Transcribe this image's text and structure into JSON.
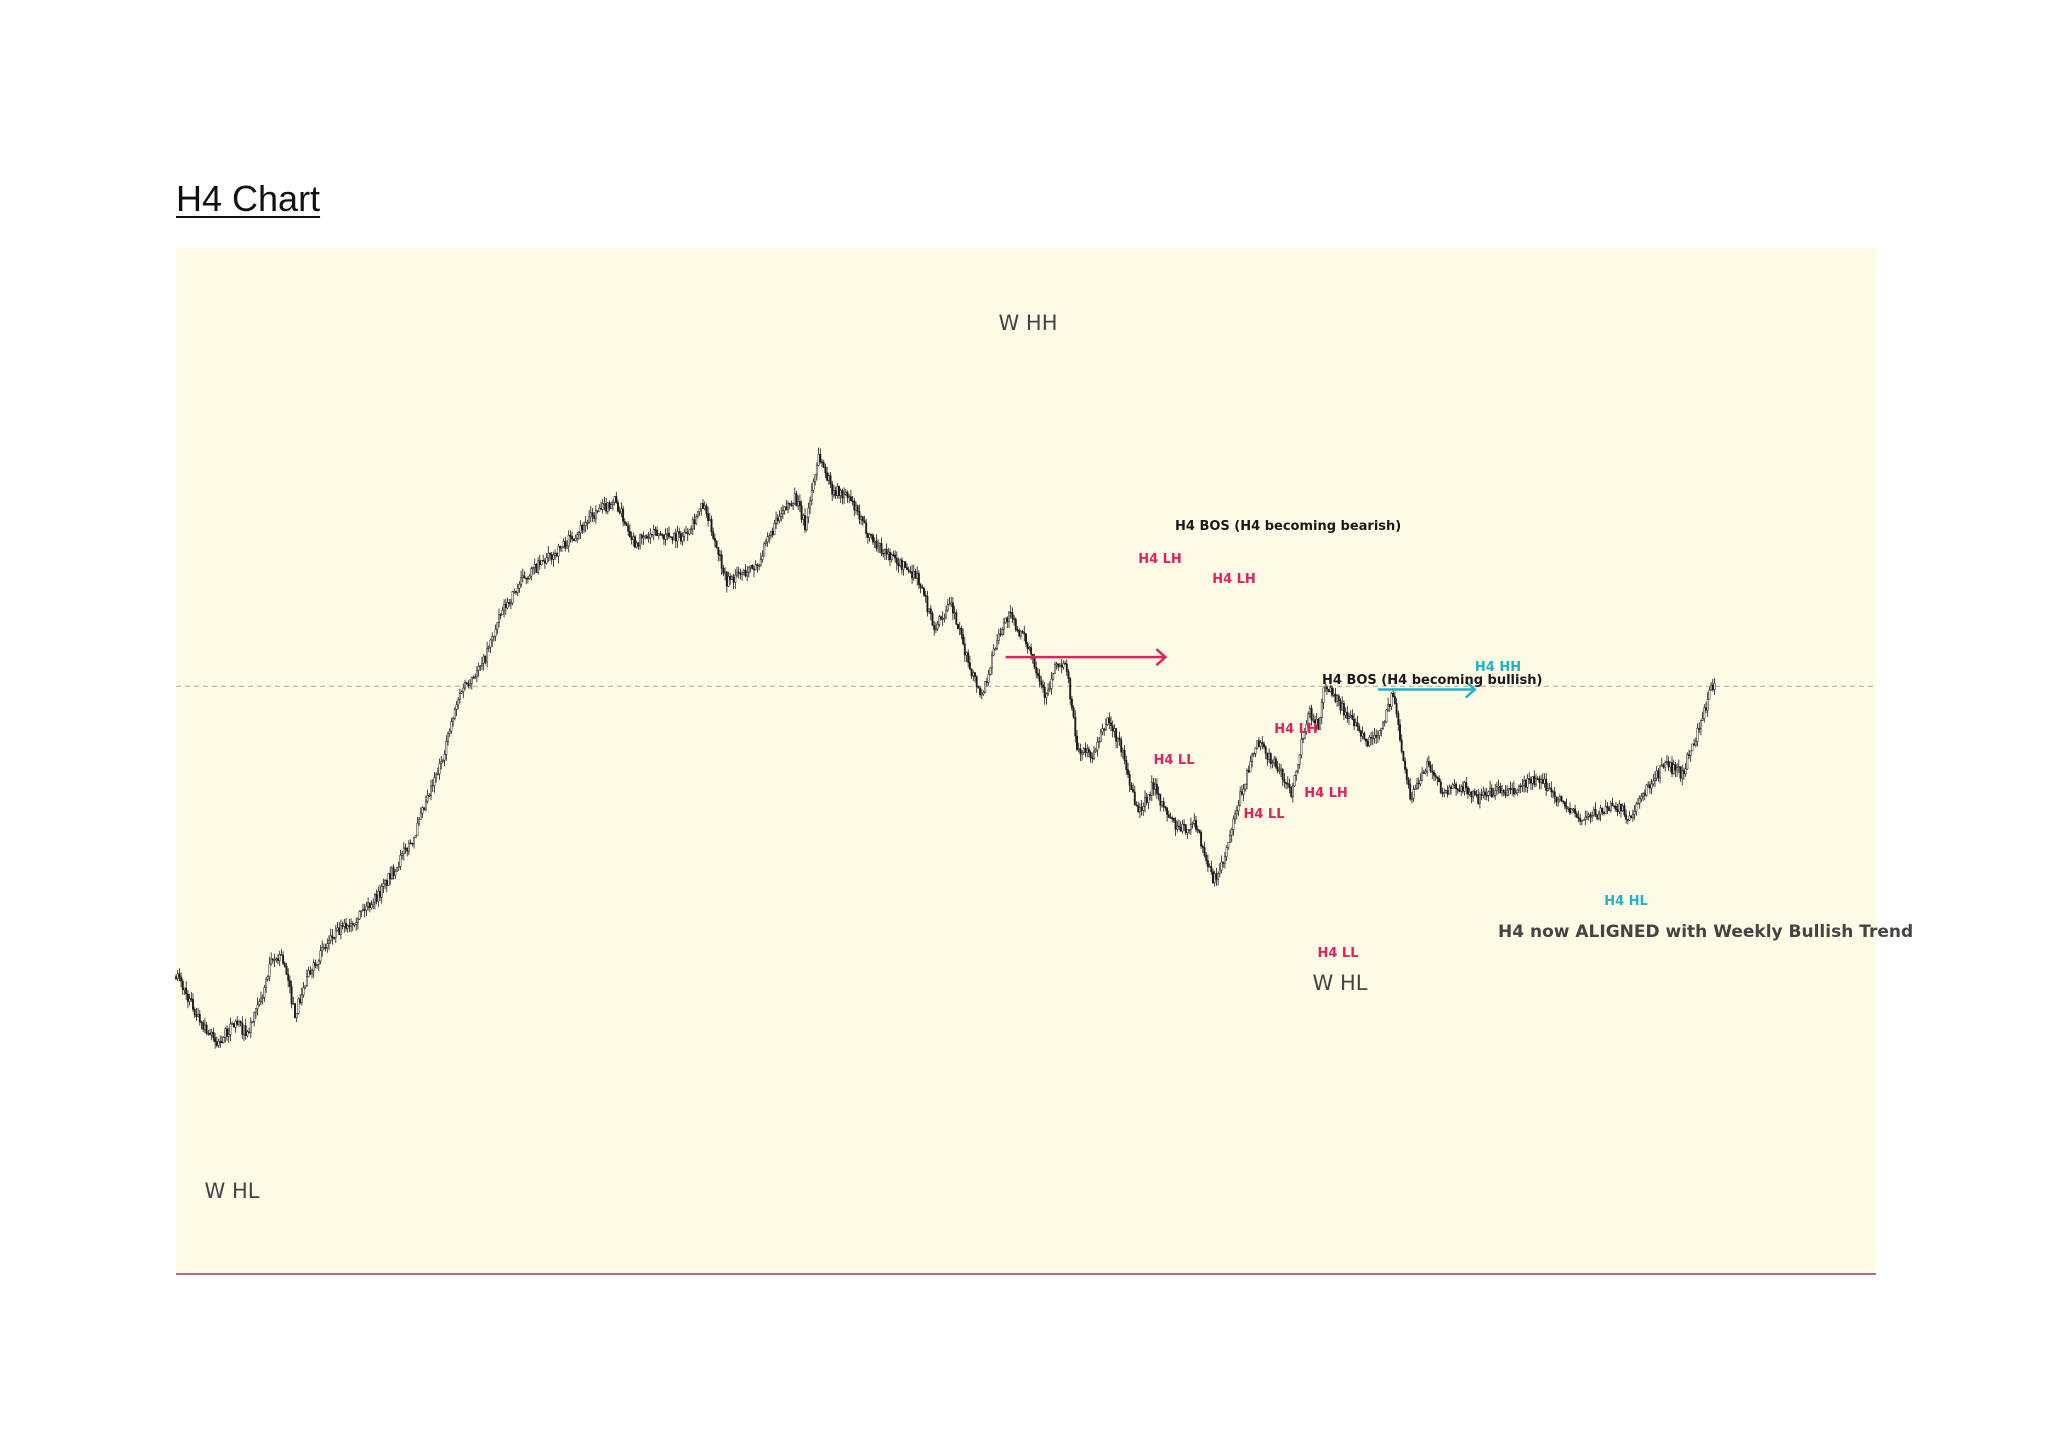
{
  "page": {
    "title": "H4 Chart"
  },
  "colors": {
    "background": "#fdfbe6",
    "candle": "#1a1a1a",
    "bearish_marker": "#e0235f",
    "bullish_marker": "#1fb3c9",
    "text": "#444444",
    "bottom_border": "#b06a8a",
    "dashed_level": "#a8a8a8"
  },
  "chart_data": {
    "type": "line",
    "title": "",
    "xlabel": "",
    "ylabel": "",
    "xlim": [
      0,
      1000
    ],
    "ylim": [
      0,
      1000
    ],
    "grid": false,
    "horizontal_level": 570,
    "series": [
      {
        "values_shown_as": "candlestick price path",
        "x": [
          0,
          12,
          24,
          35,
          42,
          50,
          56,
          62,
          70,
          80,
          92,
          106,
          120,
          140,
          155,
          168,
          180,
          192,
          205,
          225,
          245,
          258,
          270,
          282,
          298,
          310,
          316,
          324,
          334,
          342,
          352,
          364,
          370,
          378,
          386,
          396,
          404,
          412,
          426,
          436,
          446,
          456,
          466,
          474,
          484,
          490,
          502,
          512,
          518,
          524,
          530,
          540,
          548,
          556,
          566,
          576,
          580,
          590,
          600,
          610,
          616,
          626,
          636,
          646,
          656,
          666,
          672,
          676,
          688,
          700,
          708,
          716,
          726,
          736,
          746,
          756,
          766,
          776,
          786,
          796,
          806,
          816,
          826,
          838,
          846,
          856,
          866,
          876,
          886,
          896,
          906
        ],
        "values": [
          216,
          165,
          128,
          155,
          141,
          182,
          228,
          240,
          166,
          225,
          260,
          285,
          315,
          385,
          470,
          568,
          595,
          663,
          705,
          738,
          780,
          800,
          748,
          758,
          755,
          793,
          758,
          700,
          710,
          720,
          768,
          805,
          768,
          856,
          814,
          802,
          770,
          745,
          721,
          706,
          644,
          670,
          600,
          558,
          636,
          658,
          618,
          556,
          598,
          592,
          492,
          485,
          530,
          494,
          414,
          452,
          422,
          392,
          400,
          329,
          350,
          434,
          500,
          476,
          440,
          540,
          521,
          575,
          538,
          500,
          516,
          560,
          432,
          476,
          438,
          448,
          430,
          442,
          438,
          454,
          448,
          425,
          405,
          415,
          425,
          406,
          448,
          474,
          462,
          520,
          585
        ]
      }
    ],
    "annotations": [
      {
        "text": "W HH",
        "color": "#444444",
        "kind": "swing_label"
      },
      {
        "text": "W HL",
        "color": "#444444",
        "kind": "swing_label"
      },
      {
        "text": "W HL",
        "color": "#444444",
        "kind": "swing_label"
      },
      {
        "text": "H4 BOS (H4 becoming bearish)",
        "color": "#1a1a1a",
        "kind": "bos_label"
      },
      {
        "text": "H4 BOS (H4 becoming bullish)",
        "color": "#1a1a1a",
        "kind": "bos_label"
      },
      {
        "text": "H4 LH",
        "color": "#e0235f",
        "kind": "structure"
      },
      {
        "text": "H4 LH",
        "color": "#e0235f",
        "kind": "structure"
      },
      {
        "text": "H4 LL",
        "color": "#e0235f",
        "kind": "structure"
      },
      {
        "text": "H4 LH",
        "color": "#e0235f",
        "kind": "structure"
      },
      {
        "text": "H4 LL",
        "color": "#e0235f",
        "kind": "structure"
      },
      {
        "text": "H4 LH",
        "color": "#e0235f",
        "kind": "structure"
      },
      {
        "text": "H4 LL",
        "color": "#e0235f",
        "kind": "structure"
      },
      {
        "text": "H4 HH",
        "color": "#1fb3c9",
        "kind": "structure"
      },
      {
        "text": "H4 HL",
        "color": "#1fb3c9",
        "kind": "structure"
      },
      {
        "text": "H4 now ALIGNED with Weekly Bullish Trend",
        "color": "#333333",
        "kind": "note"
      }
    ],
    "arrows": [
      {
        "name": "bearish-bos-arrow",
        "color": "#e0235f",
        "from_x": 488,
        "to_x": 582,
        "level_y": 606
      },
      {
        "name": "bullish-bos-arrow",
        "color": "#1fb3c9",
        "from_x": 707,
        "to_x": 764,
        "level_y": 566
      }
    ]
  }
}
